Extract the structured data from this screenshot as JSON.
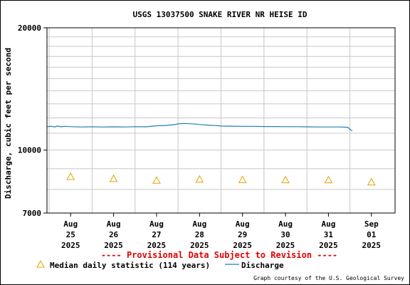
{
  "colors": {
    "discharge": "#1f7fb5",
    "median": "#e8a000",
    "provisional": "#e00000",
    "grid": "#c8c8c8"
  },
  "provisional_note": "---- Provisional Data Subject to Revision ----",
  "credit": "Graph courtesy of the U.S. Geological Survey",
  "legend": {
    "median_label": "Median daily statistic (114 years)",
    "discharge_label": "Discharge"
  },
  "chart_data": {
    "type": "line",
    "title": "USGS 13037500 SNAKE RIVER NR HEISE ID",
    "ylabel": "Discharge, cubic feet per second",
    "xlabel": "",
    "yscale": "log",
    "ylim": [
      7000,
      20000
    ],
    "xlim": [
      24.45,
      32.55
    ],
    "y_ticks": [
      {
        "value": 7000,
        "label": "7000"
      },
      {
        "value": 10000,
        "label": "10000"
      },
      {
        "value": 20000,
        "label": "20000"
      }
    ],
    "x_ticks": [
      {
        "value": 25,
        "lines": [
          "Aug",
          "25",
          "2025"
        ]
      },
      {
        "value": 26,
        "lines": [
          "Aug",
          "26",
          "2025"
        ]
      },
      {
        "value": 27,
        "lines": [
          "Aug",
          "27",
          "2025"
        ]
      },
      {
        "value": 28,
        "lines": [
          "Aug",
          "28",
          "2025"
        ]
      },
      {
        "value": 29,
        "lines": [
          "Aug",
          "29",
          "2025"
        ]
      },
      {
        "value": 30,
        "lines": [
          "Aug",
          "30",
          "2025"
        ]
      },
      {
        "value": 31,
        "lines": [
          "Aug",
          "31",
          "2025"
        ]
      },
      {
        "value": 32,
        "lines": [
          "Sep",
          "01",
          "2025"
        ]
      }
    ],
    "grid": true,
    "series": [
      {
        "name": "Discharge",
        "type": "line",
        "points": [
          [
            24.46,
            11420
          ],
          [
            24.55,
            11450
          ],
          [
            24.62,
            11400
          ],
          [
            24.7,
            11460
          ],
          [
            24.78,
            11410
          ],
          [
            24.86,
            11440
          ],
          [
            25.0,
            11420
          ],
          [
            25.25,
            11400
          ],
          [
            25.5,
            11410
          ],
          [
            25.75,
            11400
          ],
          [
            26.0,
            11410
          ],
          [
            26.25,
            11400
          ],
          [
            26.5,
            11420
          ],
          [
            26.75,
            11410
          ],
          [
            26.9,
            11450
          ],
          [
            27.0,
            11480
          ],
          [
            27.2,
            11500
          ],
          [
            27.4,
            11550
          ],
          [
            27.5,
            11600
          ],
          [
            27.65,
            11630
          ],
          [
            27.8,
            11610
          ],
          [
            27.95,
            11580
          ],
          [
            28.0,
            11560
          ],
          [
            28.2,
            11520
          ],
          [
            28.4,
            11490
          ],
          [
            28.5,
            11460
          ],
          [
            28.75,
            11450
          ],
          [
            29.0,
            11440
          ],
          [
            29.25,
            11440
          ],
          [
            29.5,
            11430
          ],
          [
            29.75,
            11430
          ],
          [
            30.0,
            11420
          ],
          [
            30.25,
            11420
          ],
          [
            30.5,
            11410
          ],
          [
            30.75,
            11400
          ],
          [
            31.0,
            11400
          ],
          [
            31.25,
            11400
          ],
          [
            31.45,
            11380
          ],
          [
            31.48,
            11300
          ],
          [
            31.52,
            11200
          ],
          [
            31.56,
            11160
          ]
        ]
      },
      {
        "name": "Median daily statistic (114 years)",
        "type": "scatter",
        "marker": "triangle",
        "points": [
          [
            25,
            8600
          ],
          [
            26,
            8500
          ],
          [
            27,
            8420
          ],
          [
            28,
            8470
          ],
          [
            29,
            8450
          ],
          [
            30,
            8440
          ],
          [
            31,
            8440
          ],
          [
            32,
            8340
          ]
        ]
      }
    ]
  }
}
